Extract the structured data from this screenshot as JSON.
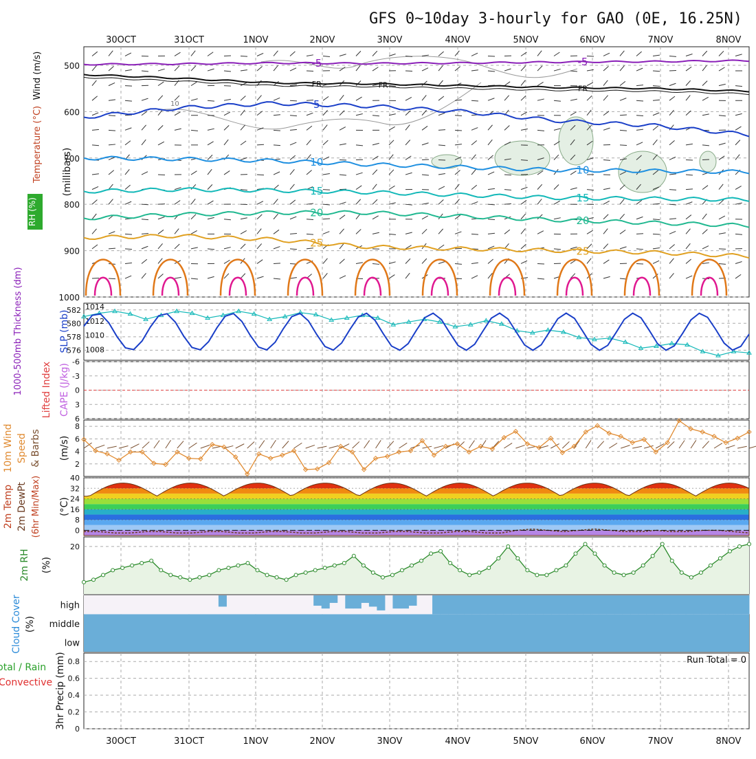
{
  "title": "GFS 0~10day 3-hourly for GAO (0E, 16.25N)",
  "dates": [
    "30OCT",
    "31OCT",
    "1NOV",
    "2NOV",
    "3NOV",
    "4NOV",
    "5NOV",
    "6NOV",
    "7NOV",
    "8NOV"
  ],
  "colors": {
    "purple": "#8a1fb8",
    "black": "#111111",
    "blue": "#1a3fc8",
    "lightblue": "#1e8fe0",
    "teal": "#12b8b8",
    "green": "#20b890",
    "gold": "#e0a020",
    "orange": "#e07818",
    "magenta": "#e01890",
    "grey": "#888888",
    "cloud": "#6aaed8"
  },
  "chart_data": [
    {
      "type": "line",
      "name": "upper-air",
      "ylabel": "(millibars)",
      "side_labels": {
        "wind": "Wind (m/s)",
        "temp": "Temperature (°C)",
        "rh": "RH (%)"
      },
      "yticks": [
        "500",
        "600",
        "700",
        "800",
        "900",
        "1000"
      ],
      "ylim": [
        1000,
        460
      ],
      "isotherms": [
        {
          "name": "-5",
          "labels": [
            "-5",
            "-5"
          ],
          "levels": [
            498,
            497,
            495,
            496,
            495,
            493,
            492,
            490
          ]
        },
        {
          "name": "FR",
          "labels": [
            "FR",
            "FR",
            "FR"
          ],
          "levels": [
            520,
            528,
            538,
            540,
            544,
            548,
            550,
            556
          ]
        },
        {
          "name": "5",
          "labels": [
            "5"
          ],
          "levels": [
            612,
            592,
            582,
            588,
            600,
            620,
            630,
            650
          ]
        },
        {
          "name": "10",
          "labels": [
            "10",
            "10"
          ],
          "levels": [
            700,
            702,
            706,
            714,
            720,
            726,
            728,
            730
          ]
        },
        {
          "name": "15",
          "labels": [
            "15",
            "15"
          ],
          "levels": [
            772,
            768,
            770,
            774,
            780,
            786,
            788,
            790
          ]
        },
        {
          "name": "20",
          "labels": [
            "20",
            "20"
          ],
          "levels": [
            830,
            822,
            818,
            818,
            826,
            834,
            840,
            846
          ]
        },
        {
          "name": "25",
          "labels": [
            "25",
            "25"
          ],
          "levels": [
            872,
            868,
            876,
            892,
            896,
            900,
            904,
            912
          ]
        }
      ],
      "rh_contour_label": "10"
    },
    {
      "type": "line",
      "name": "thickness-slp",
      "ylabel_left": "1000-500mb Thickness (dm)",
      "ylabel_right": "SLP (mb)",
      "left_ticks": [
        "582",
        "580",
        "578",
        "576"
      ],
      "right_ticks": [
        "1014",
        "1012",
        "1010",
        "1008"
      ],
      "thickness_dm": [
        581,
        581.5,
        581.8,
        581.4,
        580.6,
        581.2,
        581.8,
        581.5,
        580.8,
        581.2,
        581.8,
        581.4,
        580.6,
        581,
        581.6,
        581.3,
        580.5,
        580.8,
        581.2,
        580.8,
        579.8,
        580.2,
        580.6,
        580.2,
        579.5,
        579.8,
        580.4,
        579.9,
        578.9,
        578.6,
        579,
        578.7,
        577.9,
        577.6,
        577.8,
        577.2,
        576.3,
        576.6,
        577,
        576.8,
        575.8,
        575.2,
        575.8,
        575.6
      ]
    },
    {
      "type": "line",
      "name": "cape-lifted-index",
      "ylabel_left": "Lifted Index",
      "ylabel_right": "CAPE (J/kg)",
      "yticks": [
        "-6",
        "-3",
        "0",
        "3",
        "6"
      ],
      "values": []
    },
    {
      "type": "line",
      "name": "wind10m",
      "ylabel": "10m Wind Speed & Barbs (m/s)",
      "yticks": [
        "8",
        "6",
        "4",
        "2"
      ],
      "ylim": [
        0,
        9
      ],
      "speeds": [
        5.9,
        4.1,
        3.6,
        2.6,
        3.9,
        3.9,
        2.1,
        1.9,
        3.9,
        2.9,
        2.8,
        5.1,
        4.7,
        3.1,
        0.4,
        3.6,
        2.9,
        3.4,
        4.1,
        1.1,
        1.2,
        2.2,
        4.8,
        3.9,
        1.1,
        2.9,
        3.2,
        3.9,
        4.1,
        5.7,
        3.4,
        4.8,
        5.2,
        3.9,
        4.8,
        4.4,
        6.2,
        7.2,
        5.2,
        4.6,
        6.1,
        3.8,
        4.8,
        7.1,
        8.1,
        6.9,
        6.4,
        5.4,
        5.9,
        3.9,
        5.4,
        8.9,
        7.6,
        7.1,
        6.4,
        5.4,
        6.1,
        7.1
      ]
    },
    {
      "type": "area",
      "name": "temp2m",
      "ylabel": "2m Temp 2m DewPt (6hr Min/Max) (°C)",
      "yticks": [
        "40",
        "32",
        "24",
        "16",
        "8",
        "0"
      ],
      "ylim": [
        -4,
        40
      ],
      "temp_min": 26,
      "temp_max": 36,
      "dewpoint": [
        -1,
        -1,
        -2,
        -2,
        -1,
        -1,
        -2,
        -2,
        -1,
        -1,
        -2,
        -2,
        -1,
        -1,
        -2,
        -2,
        -1,
        -1,
        -2,
        -2,
        -1,
        -1,
        -2,
        -2,
        -1,
        -1,
        -2,
        -2,
        0,
        1,
        0,
        -1,
        0,
        1,
        0,
        -1,
        -1,
        0,
        -1,
        -1,
        0,
        0,
        -1,
        -2
      ]
    },
    {
      "type": "line",
      "name": "rh2m",
      "ylabel": "2m RH (%)",
      "yticks": [
        "20"
      ],
      "ylim": [
        0,
        24
      ],
      "values": [
        5,
        6,
        8,
        10,
        11,
        12,
        13,
        14,
        10,
        8,
        7,
        6,
        7,
        8,
        10,
        11,
        12,
        13,
        10,
        8,
        7,
        6,
        8,
        9,
        10,
        11,
        12,
        13,
        16,
        12,
        9,
        7,
        8,
        10,
        12,
        14,
        17,
        18,
        13,
        10,
        8,
        9,
        11,
        15,
        20,
        15,
        10,
        8,
        8,
        10,
        12,
        17,
        21,
        17,
        12,
        9,
        8,
        9,
        12,
        16,
        21,
        14,
        9,
        7,
        9,
        12,
        15,
        18,
        20,
        21
      ]
    },
    {
      "type": "heatmap",
      "name": "cloud-cover",
      "ylabel": "Cloud Cover (%)",
      "rows": [
        "high",
        "middle",
        "low"
      ],
      "high_cover_pct": [
        0,
        0,
        0,
        0,
        0,
        0,
        0,
        0,
        0,
        0,
        0,
        0,
        0,
        0,
        0,
        0,
        0,
        60,
        0,
        0,
        0,
        0,
        0,
        0,
        0,
        0,
        0,
        0,
        0,
        55,
        70,
        40,
        0,
        70,
        70,
        40,
        60,
        80,
        0,
        70,
        70,
        55,
        0,
        0,
        100,
        100,
        100,
        100,
        100,
        100,
        100,
        100,
        100,
        100,
        100,
        100,
        100,
        100,
        100,
        100,
        100,
        100,
        100,
        100,
        100,
        100,
        100,
        100,
        100,
        100,
        100,
        100,
        100,
        100,
        100,
        100,
        100,
        100,
        100,
        100,
        100,
        100,
        100,
        100
      ],
      "middle_low_cover_pct": 100
    },
    {
      "type": "bar",
      "name": "precip",
      "ylabel_left": "Total / Rain",
      "ylabel_left2": "Convective",
      "ylabel": "3hr Precip (mm)",
      "yticks": [
        "0.8",
        "0.6",
        "0.4",
        "0.2",
        "0"
      ],
      "ylim": [
        0,
        0.9
      ],
      "run_total": "Run Total = 0",
      "values": []
    }
  ]
}
